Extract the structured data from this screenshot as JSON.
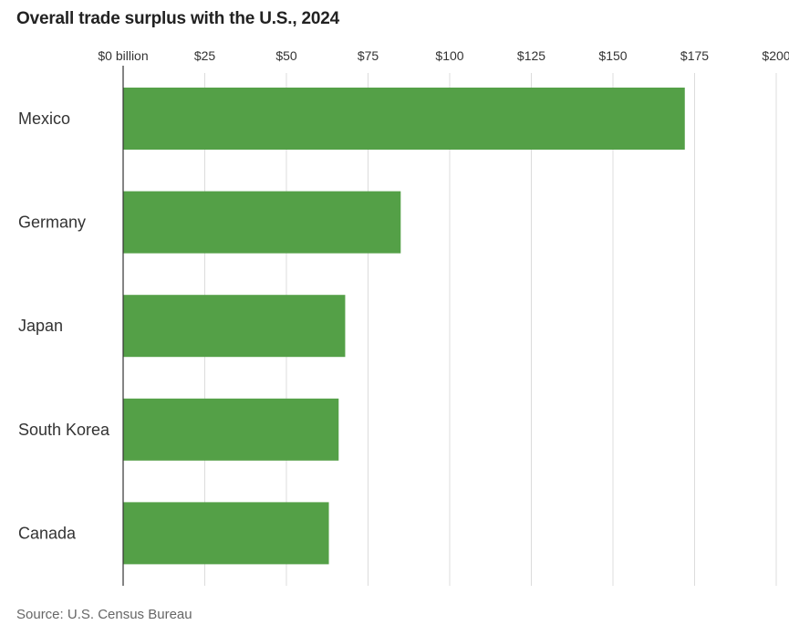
{
  "chart_data": {
    "type": "bar",
    "orientation": "horizontal",
    "title": "Overall trade surplus with the U.S., 2024",
    "categories": [
      "Mexico",
      "Germany",
      "Japan",
      "South Korea",
      "Canada"
    ],
    "values": [
      172,
      85,
      68,
      66,
      63
    ],
    "x_ticks": [
      0,
      25,
      50,
      75,
      100,
      125,
      150,
      175,
      200
    ],
    "x_tick_labels": [
      "$0 billion",
      "$25",
      "$50",
      "$75",
      "$100",
      "$125",
      "$150",
      "$175",
      "$200"
    ],
    "xlim": [
      0,
      200
    ],
    "grid": true,
    "bar_color": "#54a047",
    "source": "Source: U.S. Census Bureau"
  }
}
